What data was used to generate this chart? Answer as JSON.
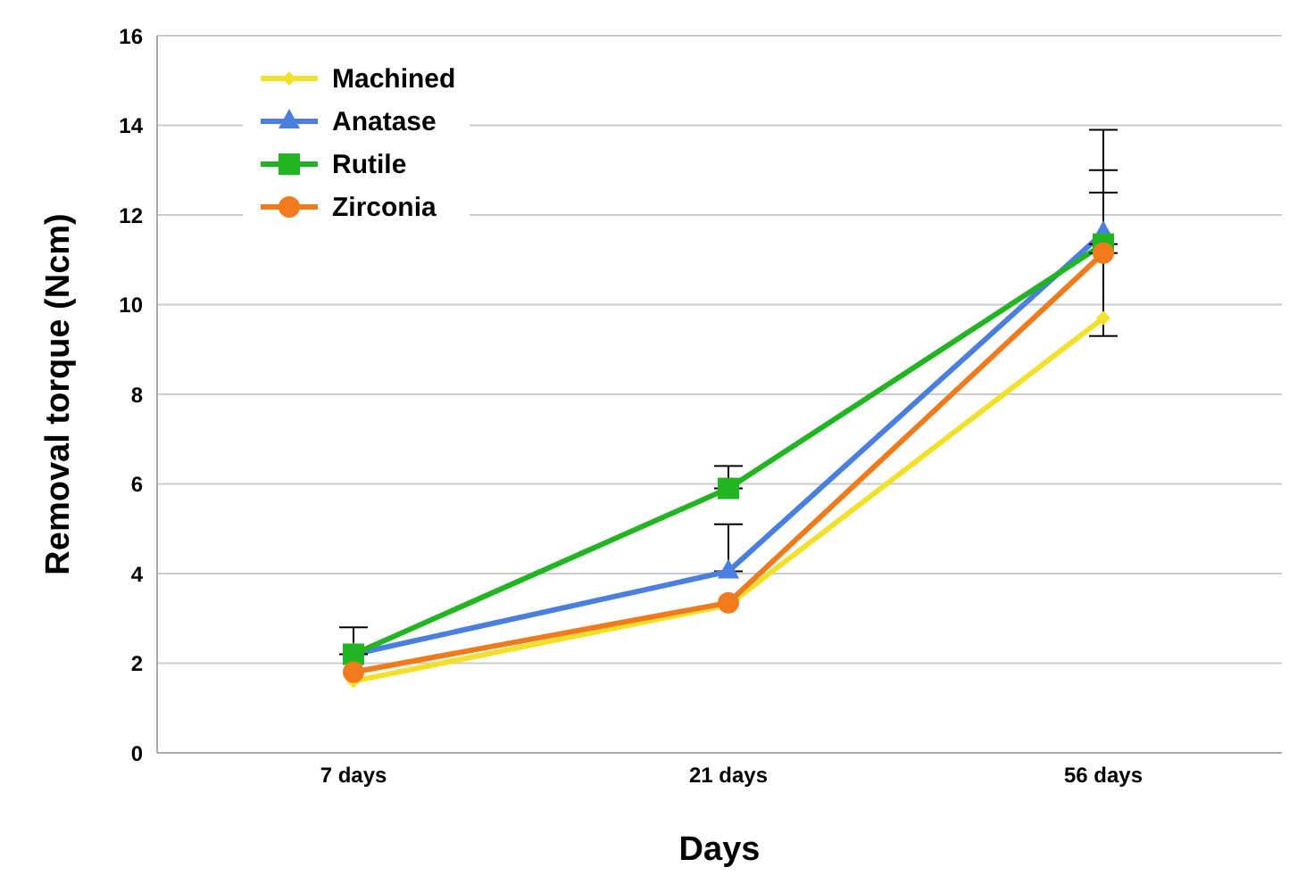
{
  "chart_data": {
    "type": "line",
    "xlabel": "Days",
    "ylabel": "Removal torque (Ncm)",
    "categories": [
      "7 days",
      "21 days",
      "56 days"
    ],
    "series": [
      {
        "name": "Machined",
        "color": "#f2e02a",
        "marker": "diamond",
        "values": [
          1.6,
          3.3,
          9.7
        ]
      },
      {
        "name": "Anatase",
        "color": "#4a7fe0",
        "marker": "triangle",
        "values": [
          2.2,
          4.05,
          11.6
        ],
        "errors": [
          null,
          [
            4.05,
            5.1
          ],
          2.3
        ]
      },
      {
        "name": "Rutile",
        "color": "#22b422",
        "marker": "square",
        "values": [
          2.2,
          5.9,
          11.35
        ],
        "errors": [
          [
            2.2,
            2.8
          ],
          [
            5.9,
            6.4
          ],
          [
            11.35,
            13.0
          ]
        ]
      },
      {
        "name": "Zirconia",
        "color": "#f07a1c",
        "marker": "circle",
        "values": [
          1.8,
          3.35,
          11.15
        ],
        "errors": [
          null,
          null,
          [
            11.15,
            12.5
          ]
        ]
      }
    ],
    "ylim": [
      0,
      16
    ],
    "yticks": [
      0,
      2,
      4,
      6,
      8,
      10,
      12,
      14,
      16
    ],
    "grid": "y",
    "legend": "top left"
  }
}
